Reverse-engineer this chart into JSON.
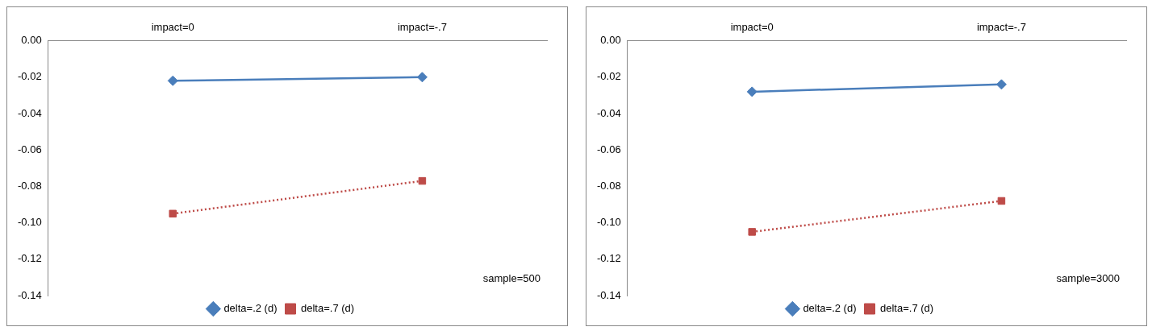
{
  "chart_data": [
    {
      "type": "line",
      "categories": [
        "impact=0",
        "impact=-.7"
      ],
      "ylim": [
        -0.14,
        0
      ],
      "yticks": [
        {
          "value": 0,
          "label": "0.00"
        },
        {
          "value": -0.02,
          "label": "-0.02"
        },
        {
          "value": -0.04,
          "label": "-0.04"
        },
        {
          "value": -0.06,
          "label": "-0.06"
        },
        {
          "value": -0.08,
          "label": "-0.08"
        },
        {
          "value": -0.1,
          "label": "-0.10"
        },
        {
          "value": -0.12,
          "label": "-0.12"
        },
        {
          "value": -0.14,
          "label": "-0.14"
        }
      ],
      "series": [
        {
          "name": "delta=.2 (d)",
          "color": "#4a7ebb",
          "values": [
            -0.022,
            -0.02
          ],
          "marker": "diamond",
          "line_style": "solid"
        },
        {
          "name": "delta=.7 (d)",
          "color": "#be4b48",
          "values": [
            -0.095,
            -0.077
          ],
          "marker": "square",
          "line_style": "dotted"
        }
      ],
      "legend": "bottom",
      "grid": false,
      "annotations": [
        "sample=500"
      ]
    },
    {
      "type": "line",
      "categories": [
        "impact=0",
        "impact=-.7"
      ],
      "ylim": [
        -0.14,
        0
      ],
      "yticks": [
        {
          "value": 0,
          "label": "0.00"
        },
        {
          "value": -0.02,
          "label": "-0.02"
        },
        {
          "value": -0.04,
          "label": "-0.04"
        },
        {
          "value": -0.06,
          "label": "-0.06"
        },
        {
          "value": -0.08,
          "label": "-0.08"
        },
        {
          "value": -0.1,
          "label": "-0.10"
        },
        {
          "value": -0.12,
          "label": "-0.12"
        },
        {
          "value": -0.14,
          "label": "-0.14"
        }
      ],
      "series": [
        {
          "name": "delta=.2 (d)",
          "color": "#4a7ebb",
          "values": [
            -0.028,
            -0.024
          ],
          "marker": "diamond",
          "line_style": "solid"
        },
        {
          "name": "delta=.7 (d)",
          "color": "#be4b48",
          "values": [
            -0.105,
            -0.088
          ],
          "marker": "square",
          "line_style": "dotted"
        }
      ],
      "legend": "bottom",
      "grid": false,
      "annotations": [
        "sample=3000"
      ]
    }
  ]
}
